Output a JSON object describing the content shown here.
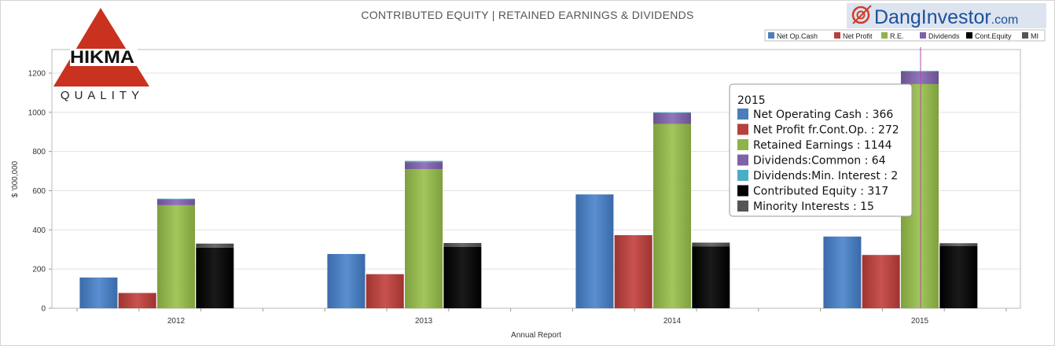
{
  "brand": {
    "site_prefix": "Dang",
    "site_main": "Investor",
    "site_suffix": ".com",
    "company_logo_text": "HIKMA",
    "company_logo_subtext": "QUALITY"
  },
  "colors": {
    "net_op_cash": "#4a7ebb",
    "net_profit": "#b4413e",
    "re": "#8fb34a",
    "dividends": "#7e62a8",
    "div_min": "#4bacc6",
    "cont_equity": "#000000",
    "mi": "#555555",
    "logo_red": "#c8321f",
    "brand_blue": "#1e4f9c",
    "crosshair": "#b04aa8"
  },
  "chart_data": {
    "type": "bar",
    "title": "CONTRIBUTED EQUITY | RETAINED EARNINGS & DIVIDENDS",
    "xlabel": "Annual Report",
    "ylabel": "$ '000,000",
    "ylim": [
      0,
      1300
    ],
    "yticks": [
      0,
      200,
      400,
      600,
      800,
      1000,
      1200
    ],
    "grid": true,
    "legend_position": "top-right",
    "categories": [
      "2012",
      "2013",
      "2014",
      "2015"
    ],
    "legend": [
      {
        "label": "Net Op.Cash",
        "color_key": "net_op_cash"
      },
      {
        "label": "Net Profit",
        "color_key": "net_profit"
      },
      {
        "label": "R.E.",
        "color_key": "re"
      },
      {
        "label": "Dividends",
        "color_key": "dividends"
      },
      {
        "label": "Cont.Equity",
        "color_key": "cont_equity"
      },
      {
        "label": "MI",
        "color_key": "mi"
      }
    ],
    "series": [
      {
        "name": "Net Op.Cash",
        "values": [
          157,
          277,
          581,
          366
        ]
      },
      {
        "name": "Net Profit",
        "values": [
          78,
          174,
          373,
          272
        ]
      },
      {
        "name": "R.E.",
        "values": [
          526,
          710,
          941,
          1144
        ]
      },
      {
        "name": "Dividends",
        "values": [
          30,
          36,
          56,
          64
        ]
      },
      {
        "name": "Div.Min.Interest",
        "values": [
          1,
          6,
          1,
          2
        ]
      },
      {
        "name": "Cont.Equity",
        "values": [
          310,
          313,
          315,
          317
        ]
      },
      {
        "name": "MI",
        "values": [
          20,
          20,
          20,
          15
        ]
      }
    ],
    "tooltip": {
      "title": "2015",
      "items": [
        {
          "label": "Net Operating Cash : 366",
          "color_key": "net_op_cash"
        },
        {
          "label": "Net Profit fr.Cont.Op. : 272",
          "color_key": "net_profit"
        },
        {
          "label": "Retained Earnings : 1144",
          "color_key": "re"
        },
        {
          "label": "Dividends:Common : 64",
          "color_key": "dividends"
        },
        {
          "label": "Dividends:Min. Interest : 2",
          "color_key": "div_min"
        },
        {
          "label": "Contributed Equity : 317",
          "color_key": "cont_equity"
        },
        {
          "label": "Minority Interests : 15",
          "color_key": "mi"
        }
      ]
    }
  }
}
